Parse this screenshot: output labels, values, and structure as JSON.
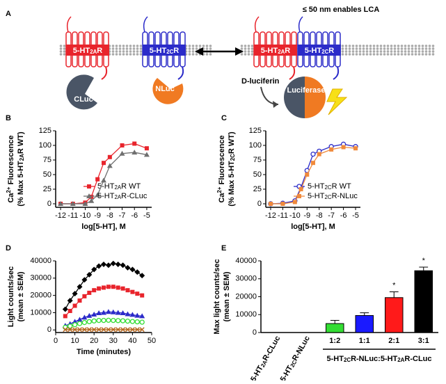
{
  "diagram": {
    "panel": "A",
    "title": "≤ 50 nm enables LCA",
    "left_receptor_a": [
      "5-HT",
      {
        "sub": "2A"
      },
      "R"
    ],
    "left_receptor_c": [
      "5-HT",
      {
        "sub": "2C"
      },
      "R"
    ],
    "right_receptor_a": [
      "5-HT",
      {
        "sub": "2A"
      },
      "R"
    ],
    "right_receptor_c": [
      "5-HT",
      {
        "sub": "2C"
      },
      "R"
    ],
    "cluc": "CLuc",
    "nluc": "NLuc",
    "substrate": "D-luciferin",
    "enzyme": "Luciferase"
  },
  "chart_data": [
    {
      "type": "line",
      "panel": "B",
      "xlabel": "log[5-HT], M",
      "ylabel": [
        [
          "Ca",
          {
            "sup": "2+"
          },
          " Fluorescence"
        ],
        [
          "(% Max 5-HT",
          {
            "sub": "2A"
          },
          "R WT)"
        ]
      ],
      "x": [
        -12,
        -11,
        -10,
        -9.5,
        -9,
        -8.5,
        -8,
        -7,
        -6,
        -5
      ],
      "xlim": [
        -12.4,
        -4.6
      ],
      "xticks": [
        -12,
        -11,
        -10,
        -9,
        -8,
        -7,
        -6,
        -5
      ],
      "ylim": [
        -6,
        125
      ],
      "yticks": [
        0,
        25,
        50,
        75,
        100,
        125
      ],
      "legend": "lower right",
      "series": [
        {
          "name": [
            "5-HT",
            {
              "sub": "2A"
            },
            "R WT"
          ],
          "color": "#e8242c",
          "marker": "square",
          "values": [
            0,
            0,
            2,
            12,
            42,
            70,
            80,
            100,
            103,
            95
          ]
        },
        {
          "name": [
            "5-HT",
            {
              "sub": "2A"
            },
            "R-CLuc"
          ],
          "color": "#6f6f6f",
          "marker": "triangle",
          "values": [
            0,
            0,
            0,
            5,
            15,
            40,
            65,
            86,
            88,
            84
          ]
        }
      ]
    },
    {
      "type": "line",
      "panel": "C",
      "xlabel": "log[5-HT], M",
      "ylabel": [
        [
          "Ca",
          {
            "sup": "2+"
          },
          " Fluorescence"
        ],
        [
          "(% Max 5-HT",
          {
            "sub": "2C"
          },
          "R WT)"
        ]
      ],
      "x": [
        -12,
        -11,
        -10,
        -9.5,
        -9,
        -8.5,
        -8,
        -7,
        -6,
        -5
      ],
      "xlim": [
        -12.4,
        -4.6
      ],
      "xticks": [
        -12,
        -11,
        -10,
        -9,
        -8,
        -7,
        -6,
        -5
      ],
      "ylim": [
        -6,
        125
      ],
      "yticks": [
        0,
        25,
        50,
        75,
        100,
        125
      ],
      "legend": "lower right",
      "series": [
        {
          "name": [
            "5-HT",
            {
              "sub": "2C"
            },
            "R WT"
          ],
          "color": "#2b2bc9",
          "marker": "circle",
          "values": [
            0,
            1,
            5,
            28,
            57,
            85,
            90,
            98,
            102,
            98
          ]
        },
        {
          "name": [
            "5-HT",
            {
              "sub": "2C"
            },
            "R-NLuc"
          ],
          "color": "#f08a3c",
          "marker": "square",
          "values": [
            0,
            0,
            3,
            25,
            50,
            70,
            85,
            93,
            97,
            95
          ]
        }
      ]
    },
    {
      "type": "line",
      "panel": "D",
      "xlabel": "Time (minutes)",
      "ylabel": [
        "Light counts/sec",
        "(mean ± SEM)"
      ],
      "x": [
        5,
        7.5,
        10,
        12.5,
        15,
        17.5,
        20,
        22.5,
        25,
        27.5,
        30,
        32.5,
        35,
        37.5,
        40,
        42.5,
        45
      ],
      "xlim": [
        0,
        50
      ],
      "xticks": [
        0,
        10,
        20,
        30,
        40,
        50
      ],
      "ylim": [
        -1500,
        40000
      ],
      "yticks": [
        0,
        10000,
        20000,
        30000,
        40000
      ],
      "series": [
        {
          "color": "#000000",
          "marker": "diamond",
          "values": [
            12000,
            17000,
            21000,
            25000,
            29000,
            32000,
            35000,
            37000,
            38000,
            37500,
            38500,
            38000,
            37500,
            36000,
            35000,
            33500,
            31500
          ]
        },
        {
          "color": "#e8242c",
          "marker": "square",
          "values": [
            8000,
            11000,
            14000,
            17000,
            19500,
            21500,
            23000,
            24000,
            24500,
            25000,
            25000,
            24500,
            24000,
            23000,
            22000,
            21000,
            20000
          ]
        },
        {
          "color": "#2b2bc9",
          "marker": "triangle",
          "values": [
            2500,
            3500,
            4800,
            6000,
            7200,
            8200,
            9000,
            9800,
            10000,
            10500,
            10300,
            10000,
            9800,
            9200,
            8800,
            8300,
            8000
          ]
        },
        {
          "color": "#33dd33",
          "marker": "circle",
          "values": [
            1500,
            2200,
            3000,
            3700,
            4300,
            4800,
            5200,
            5500,
            5500,
            5600,
            5500,
            5400,
            5300,
            5100,
            4900,
            4700,
            4500
          ]
        },
        {
          "color": "#b5651d",
          "marker": "cross",
          "values": [
            200,
            200,
            200,
            200,
            200,
            200,
            200,
            200,
            200,
            200,
            200,
            200,
            200,
            200,
            200,
            200,
            200
          ]
        }
      ]
    },
    {
      "type": "bar",
      "panel": "E",
      "ylabel": [
        "Max light counts/sec",
        "(mean ± SEM)"
      ],
      "categories": [
        [
          "5-HT",
          {
            "sub": "2A"
          },
          "R-CLuc"
        ],
        [
          "5-HT",
          {
            "sub": "2C"
          },
          "R-NLuc"
        ],
        "1:2",
        "1:1",
        "2:1",
        "3:1"
      ],
      "group_label": [
        "5-HT",
        {
          "sub": "2C"
        },
        "R-NLuc:5-HT",
        {
          "sub": "2A"
        },
        "R-CLuc"
      ],
      "values": [
        0,
        0,
        5000,
        9500,
        19500,
        34500
      ],
      "errors": [
        null,
        null,
        1800,
        1500,
        3200,
        2000
      ],
      "colors": [
        "#ffffff",
        "#ffffff",
        "#33dd33",
        "#1a1aff",
        "#ff1a1a",
        "#000000"
      ],
      "annotations": [
        null,
        null,
        null,
        null,
        "*",
        "*"
      ],
      "ylim": [
        0,
        40000
      ],
      "yticks": [
        0,
        10000,
        20000,
        30000,
        40000
      ]
    }
  ]
}
